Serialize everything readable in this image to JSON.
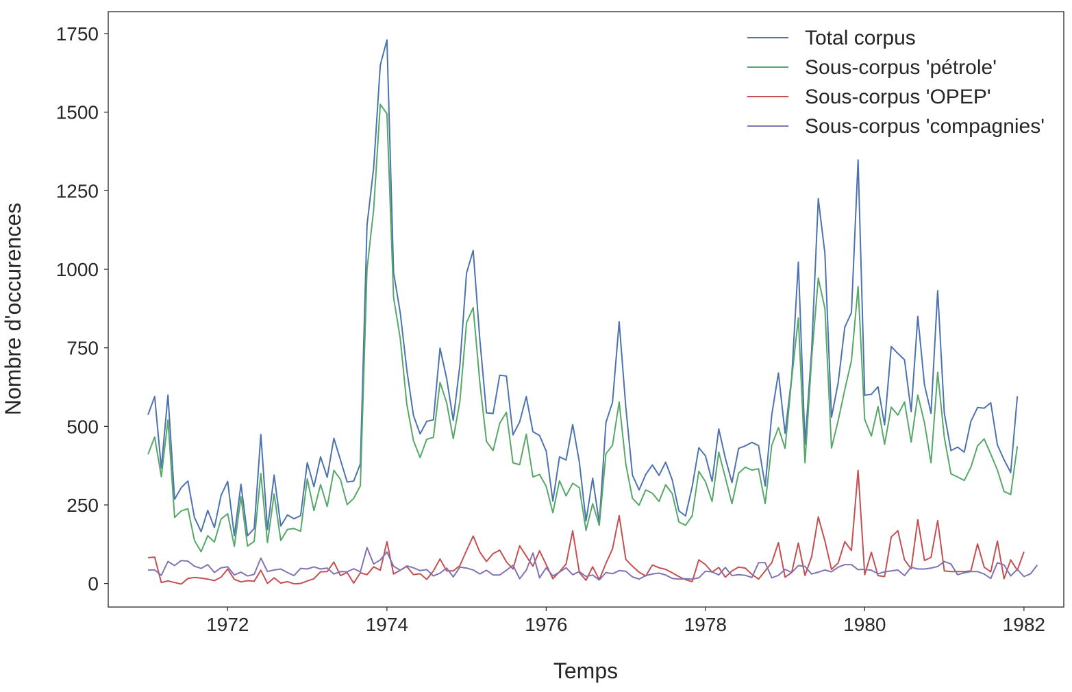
{
  "chart_data": {
    "type": "line",
    "title": "",
    "xlabel": "Temps",
    "ylabel": "Nombre d'occurences",
    "xlim": [
      1970.5,
      1982.5
    ],
    "ylim": [
      -75,
      1820
    ],
    "x_ticks": [
      1972,
      1974,
      1976,
      1978,
      1980,
      1982
    ],
    "x_tick_labels": [
      "1972",
      "1974",
      "1976",
      "1978",
      "1980",
      "1982"
    ],
    "y_ticks": [
      0,
      250,
      500,
      750,
      1000,
      1250,
      1500,
      1750
    ],
    "y_tick_labels": [
      "0",
      "250",
      "500",
      "750",
      "1000",
      "1250",
      "1500",
      "1750"
    ],
    "grid": false,
    "legend_position": "top-right",
    "x_start": 1971.0,
    "x_step_months": 1,
    "series": [
      {
        "name": "Total corpus",
        "color": "#4c72b0",
        "values": [
          537,
          595,
          367,
          600,
          268,
          305,
          326,
          210,
          165,
          233,
          178,
          280,
          325,
          152,
          316,
          152,
          175,
          474,
          172,
          345,
          183,
          218,
          206,
          216,
          385,
          308,
          403,
          338,
          462,
          393,
          323,
          326,
          381,
          1140,
          1323,
          1650,
          1730,
          989,
          862,
          680,
          535,
          476,
          516,
          521,
          749,
          652,
          519,
          695,
          988,
          1060,
          777,
          543,
          541,
          663,
          660,
          473,
          514,
          595,
          483,
          471,
          421,
          262,
          403,
          393,
          506,
          386,
          199,
          335,
          193,
          512,
          577,
          833,
          562,
          345,
          298,
          347,
          377,
          344,
          386,
          330,
          231,
          215,
          308,
          432,
          406,
          325,
          492,
          399,
          321,
          430,
          438,
          449,
          439,
          310,
          537,
          670,
          478,
          656,
          1023,
          444,
          741,
          1225,
          1050,
          529,
          638,
          816,
          862,
          1348,
          599,
          602,
          626,
          505,
          754,
          732,
          712,
          547,
          850,
          633,
          542,
          932,
          542,
          423,
          434,
          418,
          516,
          560,
          558,
          575,
          441,
          394,
          353,
          596
        ]
      },
      {
        "name": "Sous-corpus 'pétrole'",
        "color": "#55a868",
        "values": [
          411,
          466,
          340,
          520,
          210,
          231,
          238,
          137,
          101,
          152,
          132,
          205,
          222,
          118,
          276,
          119,
          134,
          350,
          130,
          285,
          137,
          172,
          175,
          166,
          333,
          232,
          315,
          245,
          360,
          331,
          251,
          271,
          311,
          1000,
          1190,
          1525,
          1495,
          910,
          780,
          570,
          455,
          401,
          459,
          465,
          640,
          575,
          461,
          580,
          830,
          878,
          640,
          452,
          423,
          510,
          545,
          384,
          378,
          475,
          339,
          347,
          309,
          225,
          327,
          279,
          319,
          305,
          169,
          254,
          185,
          413,
          440,
          578,
          380,
          271,
          249,
          298,
          287,
          261,
          314,
          286,
          196,
          185,
          215,
          357,
          324,
          261,
          418,
          337,
          254,
          351,
          370,
          361,
          365,
          254,
          440,
          496,
          430,
          652,
          845,
          384,
          716,
          972,
          875,
          431,
          518,
          617,
          709,
          945,
          522,
          469,
          563,
          443,
          561,
          536,
          578,
          450,
          600,
          512,
          384,
          672,
          465,
          349,
          339,
          328,
          370,
          438,
          460,
          412,
          361,
          293,
          283,
          437
        ]
      },
      {
        "name": "Sous-corpus 'OPEP'",
        "color": "#c44e52",
        "values": [
          82,
          84,
          3,
          8,
          3,
          -2,
          16,
          19,
          17,
          14,
          9,
          20,
          46,
          13,
          5,
          9,
          7,
          42,
          0,
          18,
          1,
          6,
          -1,
          0,
          8,
          15,
          37,
          38,
          68,
          25,
          35,
          1,
          34,
          28,
          53,
          42,
          133,
          30,
          42,
          54,
          28,
          31,
          13,
          40,
          78,
          40,
          40,
          57,
          105,
          151,
          100,
          70,
          95,
          106,
          69,
          46,
          120,
          87,
          55,
          104,
          60,
          15,
          37,
          62,
          168,
          35,
          10,
          53,
          12,
          64,
          110,
          216,
          77,
          55,
          36,
          24,
          59,
          50,
          45,
          34,
          22,
          12,
          6,
          75,
          60,
          36,
          51,
          20,
          40,
          52,
          49,
          29,
          14,
          40,
          66,
          130,
          20,
          35,
          129,
          25,
          85,
          212,
          135,
          45,
          65,
          133,
          105,
          360,
          28,
          99,
          25,
          22,
          148,
          168,
          75,
          47,
          203,
          73,
          83,
          200,
          40,
          38,
          38,
          38,
          40,
          126,
          52,
          37,
          135,
          15,
          75,
          42,
          101
        ]
      },
      {
        "name": "Sous-corpus 'compagnies'",
        "color": "#8172b2",
        "values": [
          43,
          43,
          26,
          70,
          57,
          73,
          71,
          55,
          48,
          60,
          35,
          50,
          53,
          27,
          36,
          24,
          29,
          81,
          38,
          43,
          46,
          35,
          25,
          48,
          46,
          53,
          46,
          49,
          30,
          38,
          37,
          47,
          37,
          114,
          62,
          75,
          100,
          55,
          42,
          56,
          50,
          41,
          44,
          24,
          33,
          49,
          21,
          52,
          49,
          43,
          30,
          42,
          27,
          27,
          42,
          58,
          15,
          42,
          97,
          18,
          50,
          24,
          36,
          50,
          28,
          38,
          22,
          27,
          11,
          35,
          31,
          41,
          39,
          21,
          14,
          25,
          30,
          33,
          27,
          16,
          14,
          15,
          14,
          18,
          39,
          37,
          27,
          51,
          25,
          28,
          26,
          19,
          66,
          66,
          18,
          26,
          45,
          35,
          57,
          54,
          30,
          36,
          43,
          37,
          52,
          60,
          60,
          44,
          45,
          42,
          31,
          37,
          40,
          43,
          25,
          52,
          46,
          46,
          49,
          54,
          70,
          62,
          28,
          34,
          38,
          38,
          30,
          16,
          66,
          59,
          24,
          45,
          22,
          31,
          59
        ]
      }
    ]
  }
}
